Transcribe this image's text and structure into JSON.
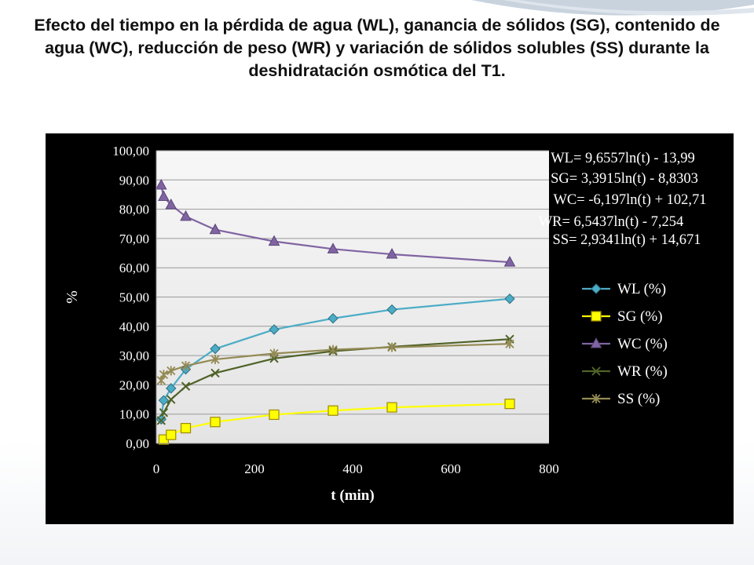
{
  "slide": {
    "title": "Efecto del tiempo en la pérdida de agua (WL), ganancia de sólidos (SG), contenido de agua (WC), reducción de peso (WR) y variación de sólidos solubles (SS) durante la deshidratación osmótica del T1."
  },
  "chart_data": {
    "type": "scatter",
    "xlabel": "t (min)",
    "ylabel": "%",
    "xlim": [
      0,
      800
    ],
    "ylim": [
      0,
      100
    ],
    "x_ticks": [
      "0",
      "200",
      "400",
      "600",
      "800"
    ],
    "y_ticks": [
      "0,00",
      "10,00",
      "20,00",
      "30,00",
      "40,00",
      "50,00",
      "60,00",
      "70,00",
      "80,00",
      "90,00",
      "100,00"
    ],
    "grid": "horizontal",
    "legend_position": "right",
    "background": "#000000",
    "series": [
      {
        "name": "WL (%)",
        "marker": "diamond",
        "color": "#4bacc6",
        "x": [
          10,
          15,
          30,
          60,
          120,
          240,
          360,
          480,
          720
        ],
        "y": [
          8.2,
          14.7,
          18.8,
          25.3,
          32.3,
          38.9,
          42.7,
          45.7,
          49.4
        ],
        "equation": "WL= 9,6557ln(t) - 13,99"
      },
      {
        "name": "SG (%)",
        "marker": "square",
        "color": "#ffff00",
        "x": [
          15,
          30,
          60,
          120,
          240,
          360,
          480,
          720
        ],
        "y": [
          1.3,
          2.9,
          5.2,
          7.3,
          9.8,
          11.2,
          12.3,
          13.5
        ],
        "equation": "SG= 3,3915ln(t) - 8,8303"
      },
      {
        "name": "WC (%)",
        "marker": "triangle",
        "color": "#8064a2",
        "x": [
          10,
          15,
          30,
          60,
          120,
          240,
          360,
          480,
          720
        ],
        "y": [
          88.2,
          84.3,
          81.5,
          77.5,
          73.0,
          69.0,
          66.4,
          64.6,
          61.9
        ],
        "equation": "WC= -6,197ln(t) + 102,71"
      },
      {
        "name": "WR (%)",
        "marker": "x",
        "color": "#4f6228",
        "x": [
          10,
          15,
          30,
          60,
          120,
          240,
          360,
          480,
          720
        ],
        "y": [
          7.8,
          10.5,
          15.0,
          19.5,
          24.0,
          29.0,
          31.5,
          33.0,
          35.6
        ],
        "equation": "WR= 6,5437ln(t) - 7,254"
      },
      {
        "name": "SS (%)",
        "marker": "star",
        "color": "#948a54",
        "x": [
          10,
          15,
          30,
          60,
          120,
          240,
          360,
          480,
          720
        ],
        "y": [
          21.5,
          23.5,
          24.8,
          26.5,
          28.7,
          30.7,
          32.0,
          32.8,
          34.0
        ],
        "equation": "SS= 2,9341ln(t) + 14,671"
      }
    ]
  }
}
